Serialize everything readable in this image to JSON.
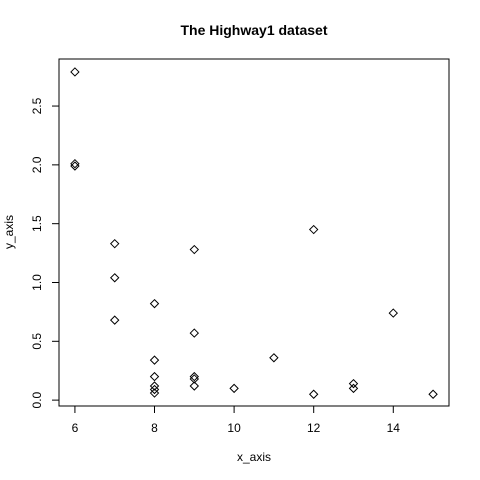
{
  "chart_data": {
    "type": "scatter",
    "title": "The Highway1 dataset",
    "xlabel": "x_axis",
    "ylabel": "y_axis",
    "xlim": [
      5.6,
      15.4
    ],
    "ylim": [
      -0.05,
      2.9
    ],
    "xticks": [
      6,
      8,
      10,
      12,
      14
    ],
    "yticks": [
      0.0,
      0.5,
      1.0,
      1.5,
      2.0,
      2.5
    ],
    "ytick_labels": [
      "0.0",
      "0.5",
      "1.0",
      "1.5",
      "2.0",
      "2.5"
    ],
    "marker": "diamond",
    "grid": false,
    "legend": false,
    "points": [
      {
        "x": 6,
        "y": 2.79
      },
      {
        "x": 6,
        "y": 2.01
      },
      {
        "x": 6,
        "y": 1.99
      },
      {
        "x": 7,
        "y": 1.33
      },
      {
        "x": 7,
        "y": 1.04
      },
      {
        "x": 7,
        "y": 0.68
      },
      {
        "x": 8,
        "y": 0.82
      },
      {
        "x": 8,
        "y": 0.34
      },
      {
        "x": 8,
        "y": 0.2
      },
      {
        "x": 8,
        "y": 0.12
      },
      {
        "x": 8,
        "y": 0.09
      },
      {
        "x": 8,
        "y": 0.06
      },
      {
        "x": 9,
        "y": 1.28
      },
      {
        "x": 9,
        "y": 0.57
      },
      {
        "x": 9,
        "y": 0.2
      },
      {
        "x": 9,
        "y": 0.18
      },
      {
        "x": 9,
        "y": 0.12
      },
      {
        "x": 10,
        "y": 0.1
      },
      {
        "x": 11,
        "y": 0.36
      },
      {
        "x": 12,
        "y": 1.45
      },
      {
        "x": 12,
        "y": 0.05
      },
      {
        "x": 13,
        "y": 0.14
      },
      {
        "x": 13,
        "y": 0.1
      },
      {
        "x": 14,
        "y": 0.74
      },
      {
        "x": 15,
        "y": 0.05
      }
    ]
  }
}
